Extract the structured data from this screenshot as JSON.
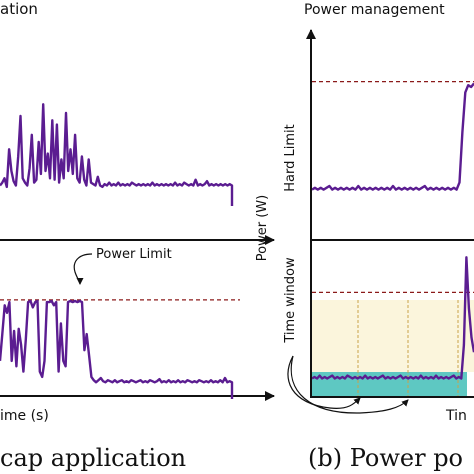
{
  "figure": {
    "left_title": "ation",
    "right_title": "Power management",
    "left_caption": "cap application",
    "right_caption": "(b) Power po",
    "left_xlabel": "ime (s)",
    "right_xlabel": "Tin",
    "right_ylabel": "Power (W)",
    "right_top_label": "Hard Limit",
    "right_bottom_label": "Time window",
    "power_limit_label": "Power Limit"
  },
  "colors": {
    "trace": "#5b1d91",
    "limit_line": "#8b1a1a",
    "window_fill": "#fbf5dc",
    "window_border": "#c8a24a",
    "base_fill": "#5ec8c2",
    "axis": "#111111"
  },
  "chart_data": [
    {
      "type": "line",
      "title": "",
      "xlabel": "",
      "ylabel": "",
      "series": [
        {
          "values": [
            0.1,
            0.12,
            0.15,
            0.09,
            0.35,
            0.2,
            0.13,
            0.1,
            0.3,
            0.58,
            0.15,
            0.12,
            0.1,
            0.22,
            0.45,
            0.12,
            0.14,
            0.4,
            0.18,
            0.66,
            0.2,
            0.32,
            0.15,
            0.55,
            0.14,
            0.52,
            0.12,
            0.28,
            0.15,
            0.6,
            0.2,
            0.35,
            0.18,
            0.45,
            0.15,
            0.12,
            0.3,
            0.14,
            0.1,
            0.28,
            0.12,
            0.11,
            0.1,
            0.16,
            0.1,
            0.09,
            0.11,
            0.1,
            0.12,
            0.1,
            0.11,
            0.1,
            0.12,
            0.1,
            0.11,
            0.1,
            0.11,
            0.1,
            0.12,
            0.11,
            0.1,
            0.11,
            0.1,
            0.11,
            0.1,
            0.11,
            0.1,
            0.12,
            0.1,
            0.11,
            0.1,
            0.11,
            0.1,
            0.11,
            0.1,
            0.11,
            0.1,
            0.12,
            0.1,
            0.11,
            0.1,
            0.12,
            0.11,
            0.1,
            0.11,
            0.1,
            0.14,
            0.1,
            0.11,
            0.1,
            0.11,
            0.13,
            0.1,
            0.11,
            0.1,
            0.11,
            0.1,
            0.11,
            0.1,
            0.11,
            0.1,
            0.11,
            0.1
          ]
        }
      ]
    },
    {
      "type": "line",
      "title": "",
      "xlabel": "",
      "ylabel": "",
      "limit": 0.87,
      "series": [
        {
          "values": [
            0.3,
            0.55,
            0.82,
            0.75,
            0.85,
            0.3,
            0.58,
            0.25,
            0.6,
            0.45,
            0.2,
            0.5,
            0.85,
            0.86,
            0.8,
            0.85,
            0.86,
            0.2,
            0.15,
            0.3,
            0.85,
            0.85,
            0.86,
            0.82,
            0.85,
            0.2,
            0.65,
            0.3,
            0.25,
            0.85,
            0.86,
            0.85,
            0.86,
            0.85,
            0.86,
            0.85,
            0.4,
            0.55,
            0.35,
            0.15,
            0.12,
            0.1,
            0.12,
            0.14,
            0.11,
            0.1,
            0.12,
            0.11,
            0.1,
            0.12,
            0.1,
            0.11,
            0.12,
            0.1,
            0.11,
            0.1,
            0.12,
            0.11,
            0.1,
            0.11,
            0.12,
            0.1,
            0.11,
            0.1,
            0.12,
            0.11,
            0.1,
            0.11,
            0.13,
            0.1,
            0.11,
            0.1,
            0.12,
            0.1,
            0.11,
            0.1,
            0.12,
            0.1,
            0.11,
            0.1,
            0.12,
            0.11,
            0.1,
            0.11,
            0.1,
            0.12,
            0.11,
            0.1,
            0.11,
            0.1,
            0.12,
            0.1,
            0.11,
            0.1,
            0.12,
            0.1,
            0.14,
            0.1,
            0.11,
            0.1
          ]
        }
      ]
    },
    {
      "type": "line",
      "title": "",
      "xlabel": "",
      "ylabel": "",
      "limit": 0.68,
      "series": [
        {
          "values": [
            0.08,
            0.09,
            0.08,
            0.09,
            0.08,
            0.09,
            0.1,
            0.08,
            0.09,
            0.08,
            0.09,
            0.08,
            0.09,
            0.08,
            0.09,
            0.08,
            0.1,
            0.08,
            0.09,
            0.08,
            0.09,
            0.08,
            0.09,
            0.08,
            0.09,
            0.08,
            0.09,
            0.08,
            0.1,
            0.08,
            0.09,
            0.08,
            0.09,
            0.08,
            0.09,
            0.08,
            0.09,
            0.08,
            0.09,
            0.1,
            0.08,
            0.09,
            0.08,
            0.09,
            0.08,
            0.09,
            0.08,
            0.09,
            0.08,
            0.09,
            0.08,
            0.12,
            0.4,
            0.62,
            0.66,
            0.65,
            0.67
          ]
        }
      ]
    },
    {
      "type": "line",
      "title": "",
      "xlabel": "",
      "ylabel": "",
      "limit": 0.71,
      "series": [
        {
          "values": [
            0.12,
            0.13,
            0.12,
            0.14,
            0.12,
            0.13,
            0.12,
            0.13,
            0.14,
            0.12,
            0.13,
            0.12,
            0.13,
            0.12,
            0.14,
            0.13,
            0.12,
            0.13,
            0.12,
            0.13,
            0.12,
            0.14,
            0.12,
            0.13,
            0.12,
            0.13,
            0.12,
            0.13,
            0.14,
            0.12,
            0.13,
            0.12,
            0.13,
            0.12,
            0.13,
            0.14,
            0.12,
            0.13,
            0.12,
            0.13,
            0.12,
            0.13,
            0.12,
            0.14,
            0.12,
            0.13,
            0.12,
            0.13,
            0.12,
            0.14,
            0.12,
            0.13,
            0.12,
            0.13,
            0.12,
            0.13,
            0.14,
            0.12,
            0.13,
            0.12,
            0.35,
            0.95,
            0.6,
            0.4,
            0.3
          ]
        }
      ]
    }
  ]
}
